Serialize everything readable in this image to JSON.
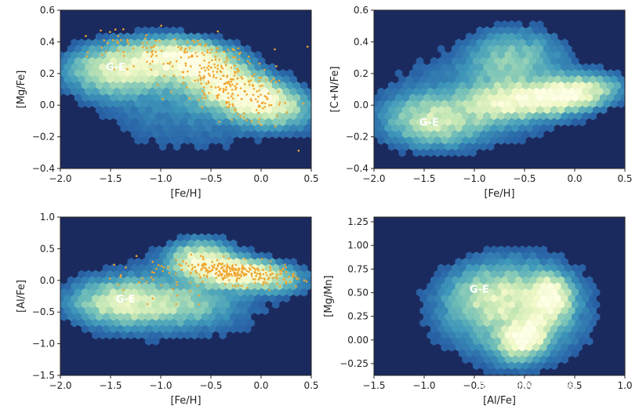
{
  "colors": {
    "background": "#1b2a5e",
    "colormap": [
      "#1b2a5e",
      "#22418e",
      "#2b6aab",
      "#3f99bb",
      "#79c4b9",
      "#c0e5b4",
      "#f1f9c7",
      "#ffffe5"
    ],
    "scatter": "#f0a630",
    "axis": "#222222"
  },
  "watermark": "知乎 @星河孤旅",
  "chart_data": [
    {
      "type": "heatmap",
      "panel": "top-left",
      "xlabel": "[Fe/H]",
      "ylabel": "[Mg/Fe]",
      "xlim": [
        -2.0,
        0.5
      ],
      "ylim": [
        -0.4,
        0.6
      ],
      "xticks": [
        -2.0,
        -1.5,
        -1.0,
        -0.5,
        0.0,
        0.5
      ],
      "yticks": [
        -0.4,
        -0.2,
        0.0,
        0.2,
        0.4,
        0.6
      ],
      "xtick_labels": [
        "−2.0",
        "−1.5",
        "−1.0",
        "−0.5",
        "0.0",
        "0.5"
      ],
      "ytick_labels": [
        "−0.4",
        "−0.2",
        "0.0",
        "0.2",
        "0.4",
        "0.6"
      ],
      "annotations": [
        {
          "text": "G-E",
          "x": -1.45,
          "y": 0.22
        }
      ],
      "density_blobs": [
        {
          "x": -0.1,
          "y": 0.05,
          "sx": 0.32,
          "sy": 0.1,
          "rho": -0.45,
          "w": 1.0
        },
        {
          "x": -0.6,
          "y": 0.26,
          "sx": 0.25,
          "sy": 0.08,
          "rho": -0.2,
          "w": 0.8
        },
        {
          "x": -1.45,
          "y": 0.22,
          "sx": 0.3,
          "sy": 0.1,
          "rho": 0.0,
          "w": 0.6
        },
        {
          "x": -1.0,
          "y": 0.3,
          "sx": 0.28,
          "sy": 0.08,
          "rho": 0.0,
          "w": 0.45
        },
        {
          "x": -0.7,
          "y": 0.0,
          "sx": 0.6,
          "sy": 0.2,
          "rho": 0.0,
          "w": 0.15
        }
      ],
      "scatter_clusters": [
        {
          "x": -0.3,
          "y": 0.12,
          "sx": 0.3,
          "sy": 0.12,
          "rho": -0.6,
          "n": 230
        },
        {
          "x": -0.8,
          "y": 0.33,
          "sx": 0.4,
          "sy": 0.05,
          "rho": 0.0,
          "n": 70
        },
        {
          "x": -1.5,
          "y": 0.38,
          "sx": 0.25,
          "sy": 0.06,
          "rho": 0.0,
          "n": 25
        }
      ]
    },
    {
      "type": "heatmap",
      "panel": "top-right",
      "xlabel": "[Fe/H]",
      "ylabel": "[C+N/Fe]",
      "xlim": [
        -2.0,
        0.5
      ],
      "ylim": [
        -0.4,
        0.6
      ],
      "xticks": [
        -2.0,
        -1.5,
        -1.0,
        -0.5,
        0.0,
        0.5
      ],
      "yticks": [
        -0.4,
        -0.2,
        0.0,
        0.2,
        0.4,
        0.6
      ],
      "xtick_labels": [
        "−2.0",
        "−1.5",
        "−1.0",
        "−0.5",
        "0.0",
        "0.5"
      ],
      "ytick_labels": [
        "−0.4",
        "−0.2",
        "0.0",
        "0.2",
        "0.4",
        "0.6"
      ],
      "annotations": [
        {
          "text": "G-E",
          "x": -1.45,
          "y": -0.13
        }
      ],
      "density_blobs": [
        {
          "x": -0.15,
          "y": 0.06,
          "sx": 0.32,
          "sy": 0.07,
          "rho": 0.35,
          "w": 1.0
        },
        {
          "x": -0.75,
          "y": 0.02,
          "sx": 0.22,
          "sy": 0.08,
          "rho": 0.0,
          "w": 0.45
        },
        {
          "x": -1.4,
          "y": -0.1,
          "sx": 0.3,
          "sy": 0.1,
          "rho": 0.0,
          "w": 0.5
        },
        {
          "x": -0.6,
          "y": 0.3,
          "sx": 0.3,
          "sy": 0.12,
          "rho": 0.0,
          "w": 0.3
        },
        {
          "x": -0.9,
          "y": 0.05,
          "sx": 0.7,
          "sy": 0.2,
          "rho": 0.0,
          "w": 0.15
        }
      ],
      "scatter_clusters": []
    },
    {
      "type": "heatmap",
      "panel": "bottom-left",
      "xlabel": "[Fe/H]",
      "ylabel": "[Al/Fe]",
      "xlim": [
        -2.0,
        0.5
      ],
      "ylim": [
        -1.5,
        1.0
      ],
      "xticks": [
        -2.0,
        -1.5,
        -1.0,
        -0.5,
        0.0,
        0.5
      ],
      "yticks": [
        -1.5,
        -1.0,
        -0.5,
        0.0,
        0.5,
        1.0
      ],
      "xtick_labels": [
        "−2.0",
        "−1.5",
        "−1.0",
        "−0.5",
        "0.0",
        "0.5"
      ],
      "ytick_labels": [
        "−1.5",
        "−1.0",
        "−0.5",
        "0.0",
        "0.5",
        "1.0"
      ],
      "annotations": [
        {
          "text": "G-E",
          "x": -1.35,
          "y": -0.35
        }
      ],
      "density_blobs": [
        {
          "x": -0.2,
          "y": 0.1,
          "sx": 0.32,
          "sy": 0.15,
          "rho": -0.3,
          "w": 1.0
        },
        {
          "x": -0.6,
          "y": 0.35,
          "sx": 0.2,
          "sy": 0.18,
          "rho": 0.0,
          "w": 0.55
        },
        {
          "x": -1.4,
          "y": -0.35,
          "sx": 0.3,
          "sy": 0.22,
          "rho": 0.0,
          "w": 0.55
        },
        {
          "x": -0.8,
          "y": -0.4,
          "sx": 0.3,
          "sy": 0.2,
          "rho": 0.0,
          "w": 0.3
        },
        {
          "x": -0.8,
          "y": -0.3,
          "sx": 0.7,
          "sy": 0.5,
          "rho": 0.0,
          "w": 0.12
        }
      ],
      "scatter_clusters": [
        {
          "x": -0.25,
          "y": 0.12,
          "sx": 0.3,
          "sy": 0.1,
          "rho": -0.45,
          "n": 260
        },
        {
          "x": -1.1,
          "y": 0.12,
          "sx": 0.3,
          "sy": 0.12,
          "rho": 0.4,
          "n": 25
        },
        {
          "x": -0.8,
          "y": -0.2,
          "sx": 0.25,
          "sy": 0.12,
          "rho": 0.0,
          "n": 10
        }
      ]
    },
    {
      "type": "heatmap",
      "panel": "bottom-right",
      "xlabel": "[Al/Fe]",
      "ylabel": "[Mg/Mn]",
      "xlim": [
        -1.5,
        1.0
      ],
      "ylim": [
        -0.375,
        1.3
      ],
      "xticks": [
        -1.5,
        -1.0,
        -0.5,
        0.0,
        0.5,
        1.0
      ],
      "yticks": [
        -0.25,
        0.0,
        0.25,
        0.5,
        0.75,
        1.0,
        1.25
      ],
      "xtick_labels": [
        "−1.5",
        "−1.0",
        "−0.5",
        "0.0",
        "0.5",
        "1.0"
      ],
      "ytick_labels": [
        "−0.25",
        "0.00",
        "0.25",
        "0.50",
        "0.75",
        "1.00",
        "1.25"
      ],
      "annotations": [
        {
          "text": "G-E",
          "x": -0.45,
          "y": 0.5
        }
      ],
      "density_blobs": [
        {
          "x": 0.0,
          "y": 0.02,
          "sx": 0.14,
          "sy": 0.12,
          "rho": 0.3,
          "w": 1.0
        },
        {
          "x": 0.25,
          "y": 0.45,
          "sx": 0.13,
          "sy": 0.14,
          "rho": 0.0,
          "w": 0.8
        },
        {
          "x": -0.3,
          "y": 0.45,
          "sx": 0.28,
          "sy": 0.2,
          "rho": 0.0,
          "w": 0.35
        },
        {
          "x": 0.0,
          "y": 0.3,
          "sx": 0.4,
          "sy": 0.35,
          "rho": 0.0,
          "w": 0.3
        },
        {
          "x": -0.4,
          "y": 0.3,
          "sx": 0.5,
          "sy": 0.35,
          "rho": 0.0,
          "w": 0.1
        }
      ],
      "scatter_clusters": []
    }
  ]
}
